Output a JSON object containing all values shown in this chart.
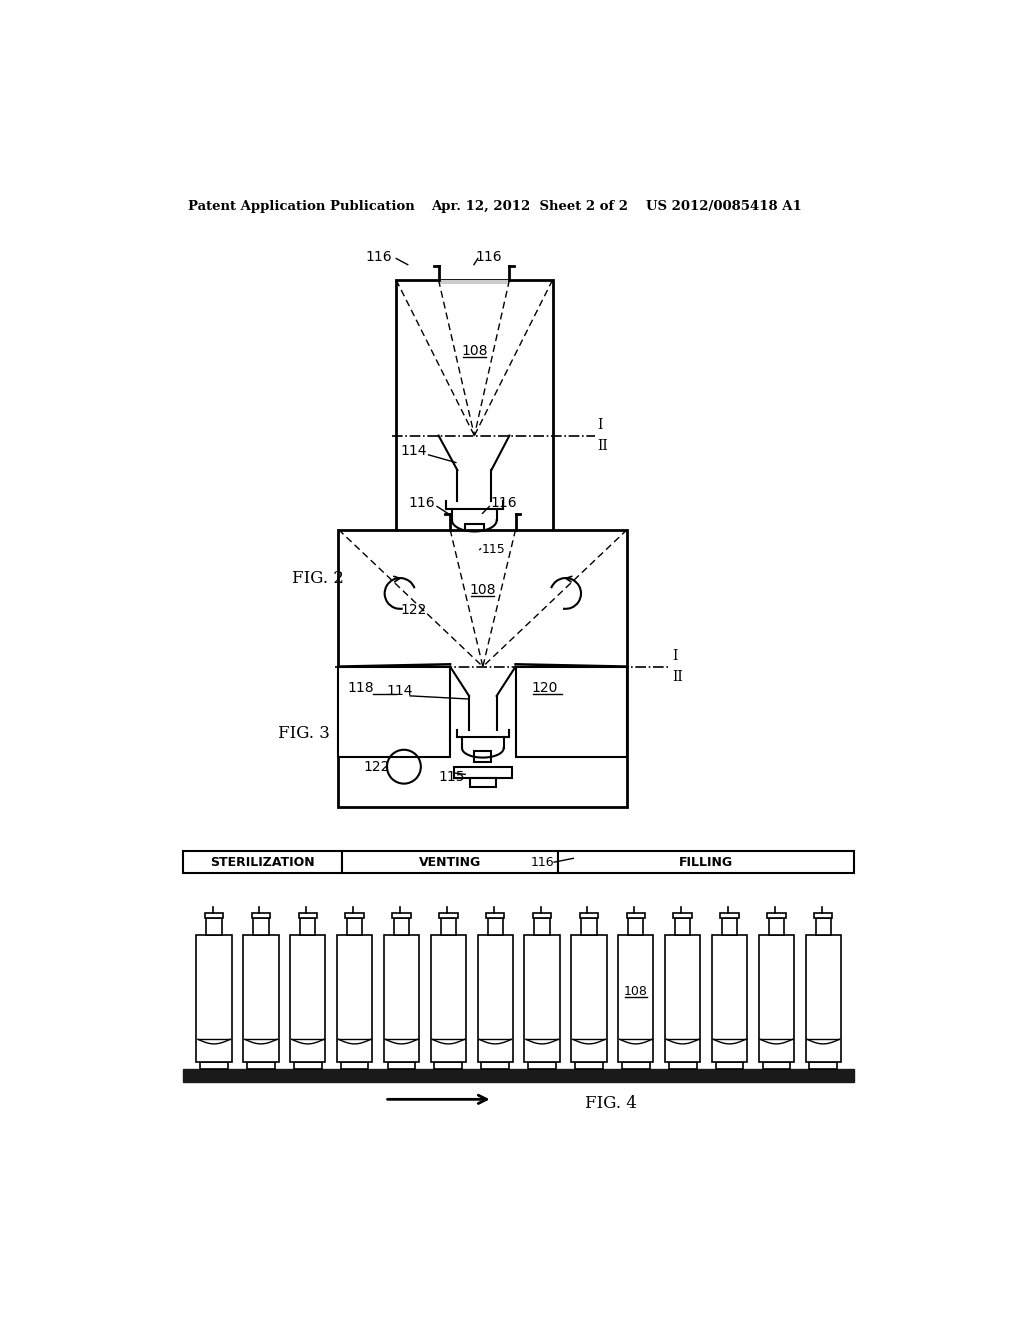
{
  "header_left": "Patent Application Publication",
  "header_center": "Apr. 12, 2012  Sheet 2 of 2",
  "header_right": "US 2012/0085418 A1",
  "fig2_label": "FIG. 2",
  "fig3_label": "FIG. 3",
  "fig4_label": "FIG. 4",
  "background_color": "#ffffff",
  "line_color": "#000000"
}
